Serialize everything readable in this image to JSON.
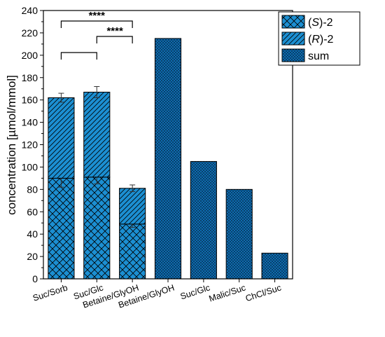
{
  "chart_data": {
    "type": "bar",
    "categories": [
      "Suc/Sorb",
      "Suc/Glc",
      "Betaine/GlyOH",
      "Betaine/GlyOH",
      "Suc/Glc",
      "Malic/Suc",
      "ChCl/Suc"
    ],
    "series": [
      {
        "name": "(S)-2",
        "name_italic": "S",
        "values": [
          90,
          91,
          49,
          null,
          null,
          null,
          null
        ],
        "errors": [
          8,
          6,
          3,
          null,
          null,
          null,
          null
        ]
      },
      {
        "name": "(R)-2",
        "name_italic": "R",
        "values": [
          72,
          76,
          32,
          null,
          null,
          null,
          null
        ],
        "errors": [
          4,
          5,
          3,
          null,
          null,
          null,
          null
        ]
      },
      {
        "name": "sum",
        "values": [
          null,
          null,
          null,
          215,
          105,
          80,
          23
        ],
        "errors": [
          null,
          null,
          null,
          null,
          null,
          null,
          null
        ]
      }
    ],
    "title": "",
    "xlabel": "",
    "ylabel": "concentration [µmol/mmol]",
    "ylim": [
      0,
      240
    ],
    "yticks": [
      0,
      20,
      40,
      60,
      80,
      100,
      120,
      140,
      160,
      180,
      200,
      220,
      240
    ],
    "significance": [
      {
        "from": 0,
        "to": 2,
        "label": "****"
      },
      {
        "from": 1,
        "to": 2,
        "label": "****"
      },
      {
        "from": 0,
        "to": 1,
        "label": ""
      }
    ],
    "legend": {
      "position": "top-right",
      "entries": [
        "(S)-2",
        "(R)-2",
        "sum"
      ]
    },
    "grid": false
  },
  "colors": {
    "bar_fill": "#1c8fd2",
    "bar_fill_sum": "#0e6bb0",
    "edge": "#000000"
  }
}
